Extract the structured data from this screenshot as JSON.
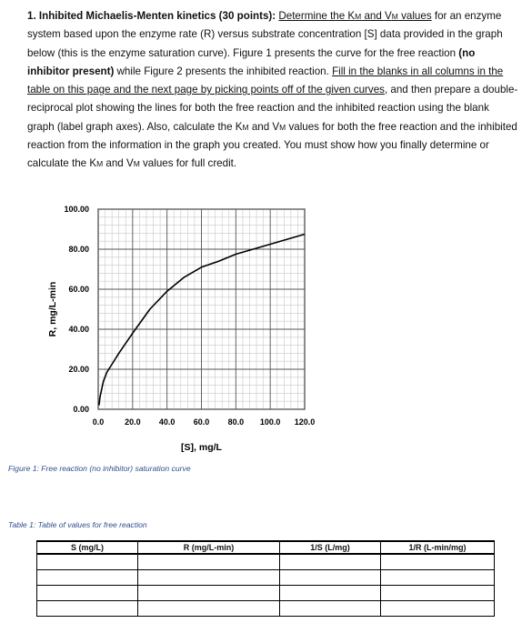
{
  "problem": {
    "number": "1.",
    "title": "Inhibited Michaelis-Menten kinetics (30 points):",
    "p1": "Determine the K",
    "p2": "M",
    "p3": " and V",
    "p4": "M",
    "p5": " values",
    "p6": " for an enzyme system based upon the enzyme rate (R) versus substrate concentration [S] data provided in the graph below (this is the enzyme saturation curve). Figure 1 presents the curve for the free reaction ",
    "p7": "(no inhibitor present)",
    "p8": " while Figure 2 presents the inhibited reaction. ",
    "p9": "Fill in the blanks in all columns in the table on this page and the next page by picking points off of the given curves",
    "p10": ", and then prepare a double-reciprocal plot showing the lines for both the free reaction and the inhibited reaction using the blank graph (label graph axes). Also, calculate the K",
    "p11": "M",
    "p12": " and V",
    "p13": "M",
    "p14": " values for both the free reaction and the inhibited reaction from the information in the graph you created. You must show how you finally determine or calculate the K",
    "p15": "M",
    "p16": " and V",
    "p17": "M",
    "p18": " values for full credit."
  },
  "chart_data": {
    "type": "line",
    "xlabel": "[S], mg/L",
    "ylabel": "R, mg/L-min",
    "xlim": [
      0,
      120
    ],
    "ylim": [
      0,
      100
    ],
    "x_ticks": [
      "0.0",
      "20.0",
      "40.0",
      "60.0",
      "80.0",
      "100.0",
      "120.0"
    ],
    "y_ticks": [
      "0.00",
      "20.00",
      "40.00",
      "60.00",
      "80.00",
      "100.00"
    ],
    "grid": true,
    "series": [
      {
        "color": "#000000",
        "points": [
          [
            0.5,
            2
          ],
          [
            1,
            6
          ],
          [
            2,
            10
          ],
          [
            3,
            14
          ],
          [
            5,
            18.5
          ],
          [
            8,
            22.5
          ],
          [
            12,
            28
          ],
          [
            20,
            38
          ],
          [
            30,
            50
          ],
          [
            40,
            59
          ],
          [
            50,
            66
          ],
          [
            60,
            71
          ],
          [
            70,
            74
          ],
          [
            80,
            77.5
          ],
          [
            90,
            80
          ],
          [
            100,
            82.5
          ],
          [
            110,
            85
          ],
          [
            120,
            87.5
          ]
        ]
      }
    ]
  },
  "figure_caption": "Figure 1: Free reaction (no inhibitor) saturation curve",
  "table_caption": "Table 1: Table of values for free reaction",
  "table": {
    "headers": [
      "S (mg/L)",
      "R (mg/L-min)",
      "1/S (L/mg)",
      "1/R (L-min/mg)"
    ]
  }
}
